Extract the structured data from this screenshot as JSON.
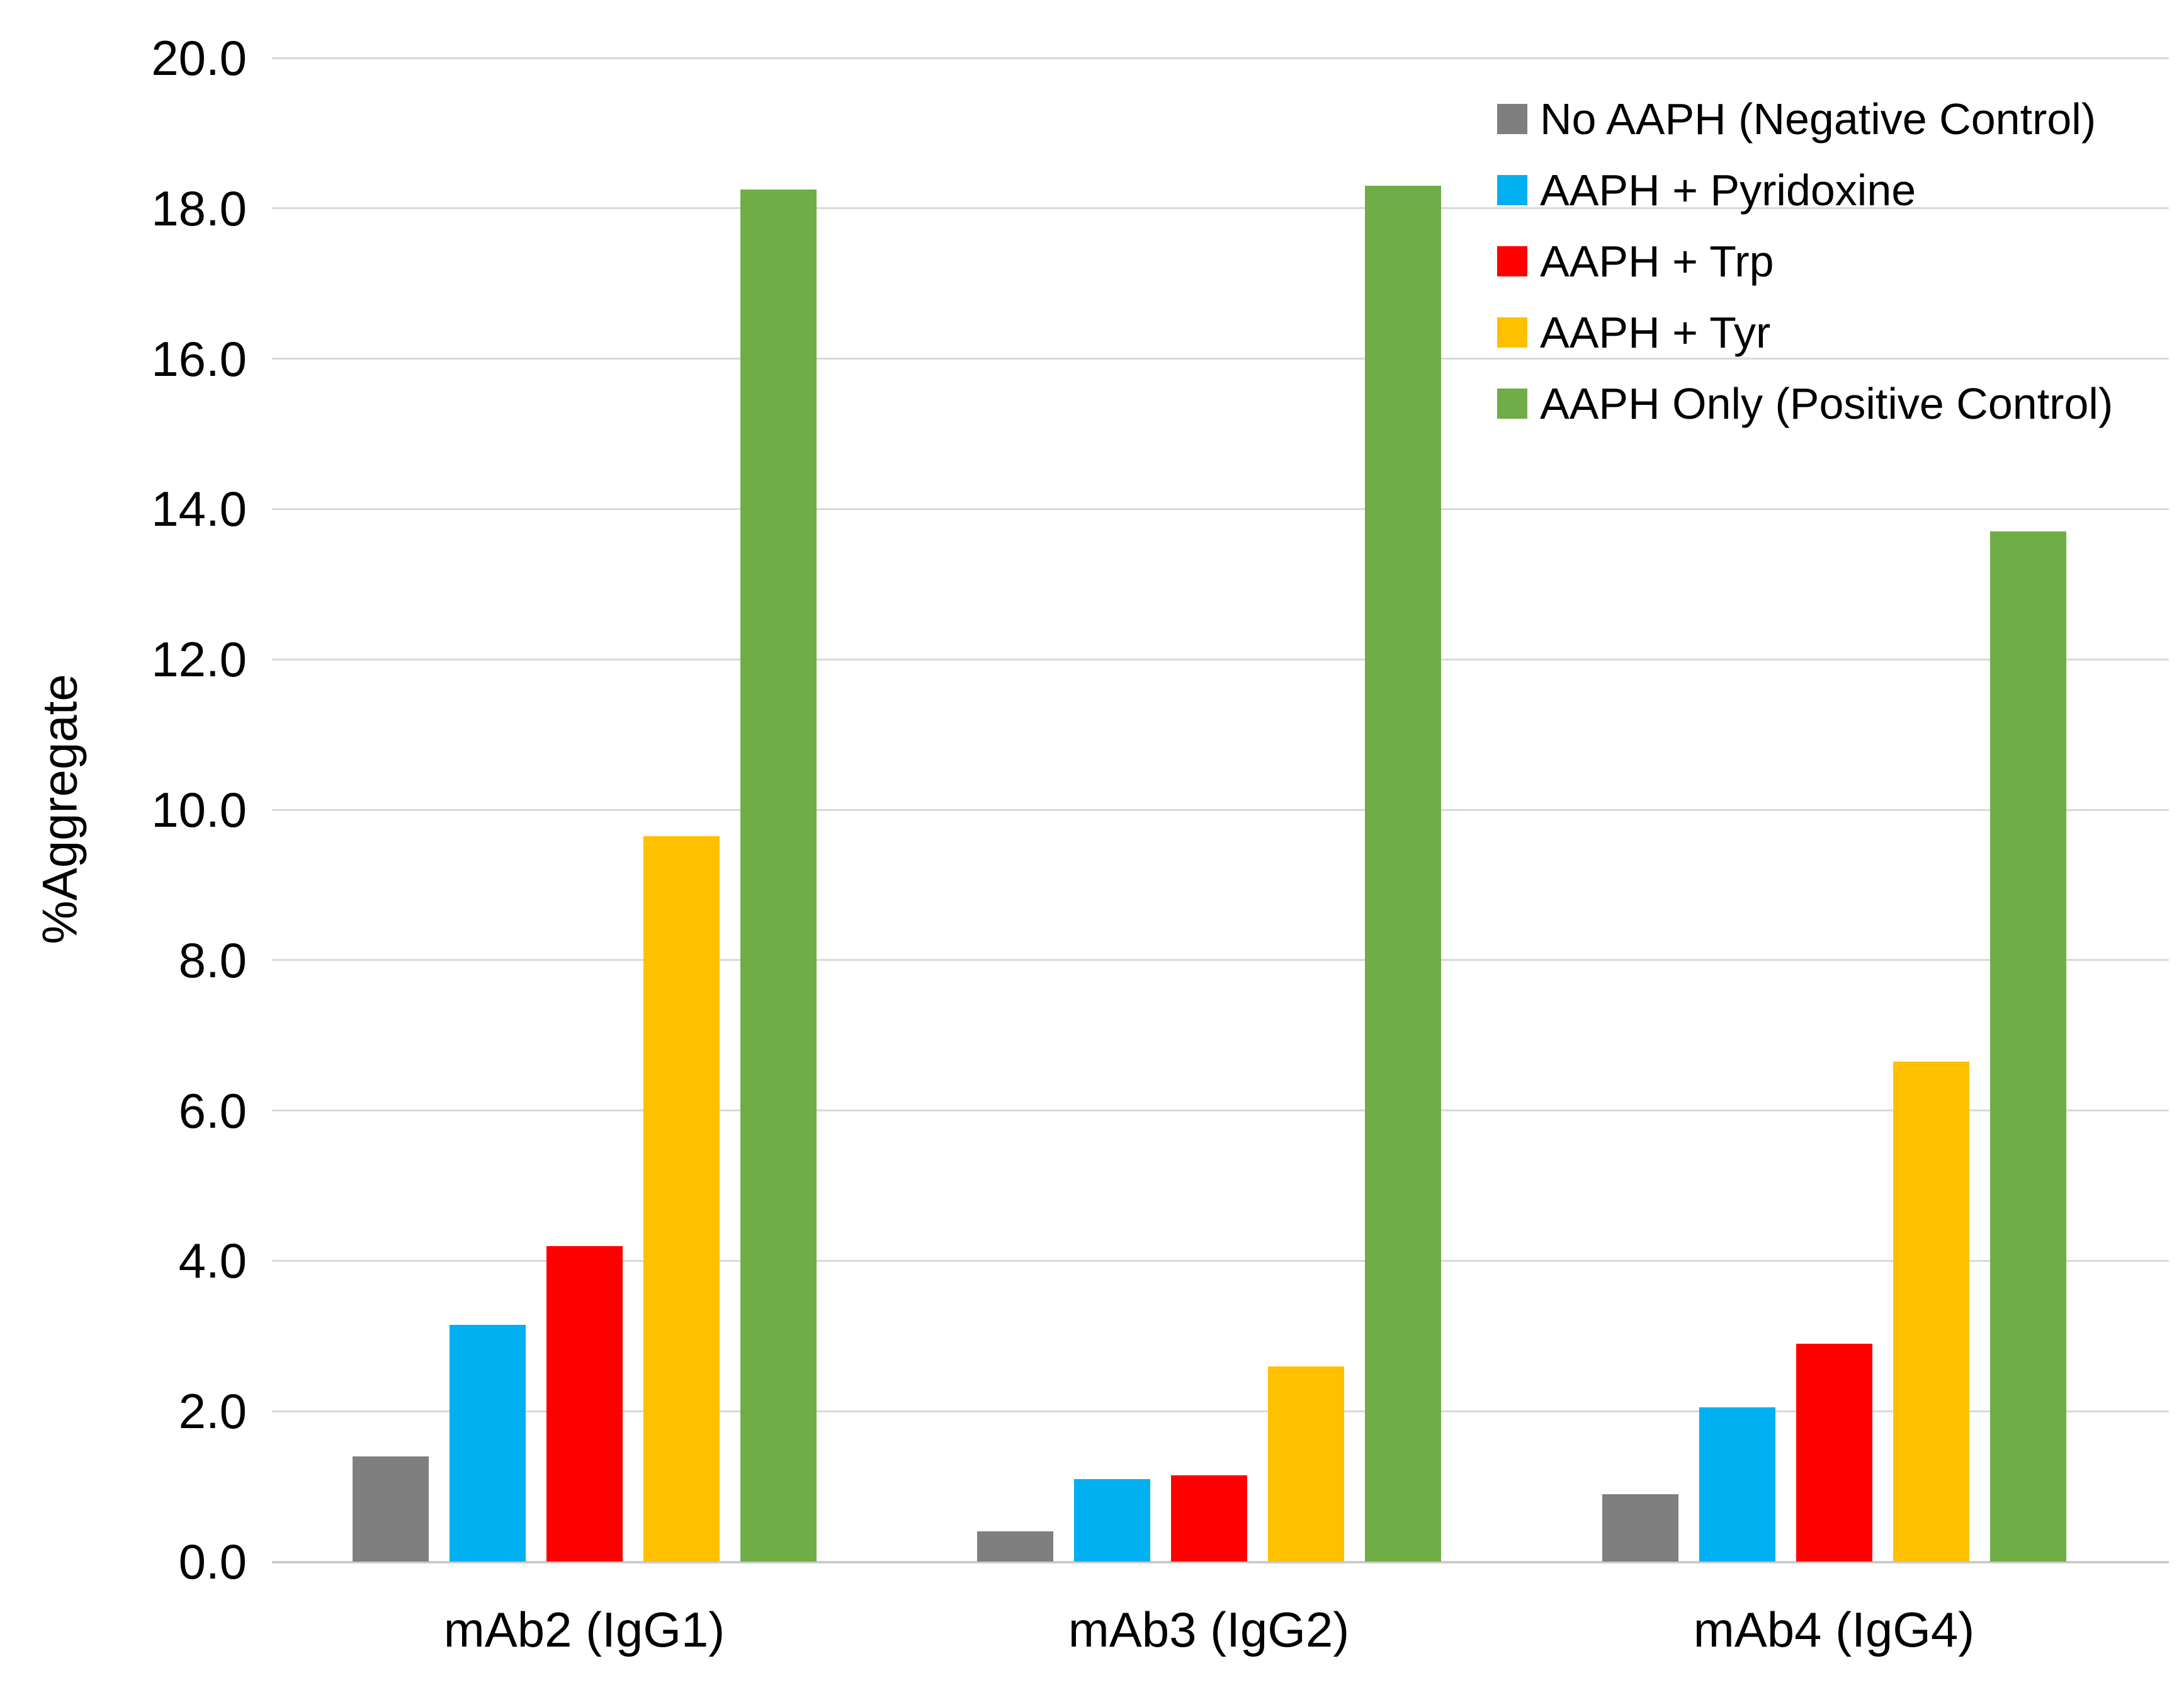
{
  "chart_data": {
    "type": "bar",
    "title": "",
    "xlabel": "",
    "ylabel": "%Aggregate",
    "ylim": [
      0,
      20
    ],
    "ytick_step": 2,
    "yticks": [
      "20.0",
      "18.0",
      "16.0",
      "14.0",
      "12.0",
      "10.0",
      "8.0",
      "6.0",
      "4.0",
      "2.0",
      "0.0"
    ],
    "grid": true,
    "legend_position": "top-right-inside",
    "background_color": "#ffffff",
    "gridline_color": "#d9d9d9",
    "text_color": "#000000",
    "categories": [
      "mAb2 (IgG1)",
      "mAb3 (IgG2)",
      "mAb4 (IgG4)"
    ],
    "series": [
      {
        "name": "No AAPH (Negative Control)",
        "color": "#7f7f7f",
        "values": [
          1.4,
          0.4,
          0.9
        ]
      },
      {
        "name": "AAPH + Pyridoxine",
        "color": "#00b0f0",
        "values": [
          3.15,
          1.1,
          2.05
        ]
      },
      {
        "name": "AAPH + Trp",
        "color": "#ff0000",
        "values": [
          4.2,
          1.15,
          2.9
        ]
      },
      {
        "name": "AAPH + Tyr",
        "color": "#ffc000",
        "values": [
          9.65,
          2.6,
          6.65
        ]
      },
      {
        "name": "AAPH Only (Positive Control)",
        "color": "#70ad47",
        "values": [
          18.25,
          18.3,
          13.7
        ]
      }
    ]
  }
}
